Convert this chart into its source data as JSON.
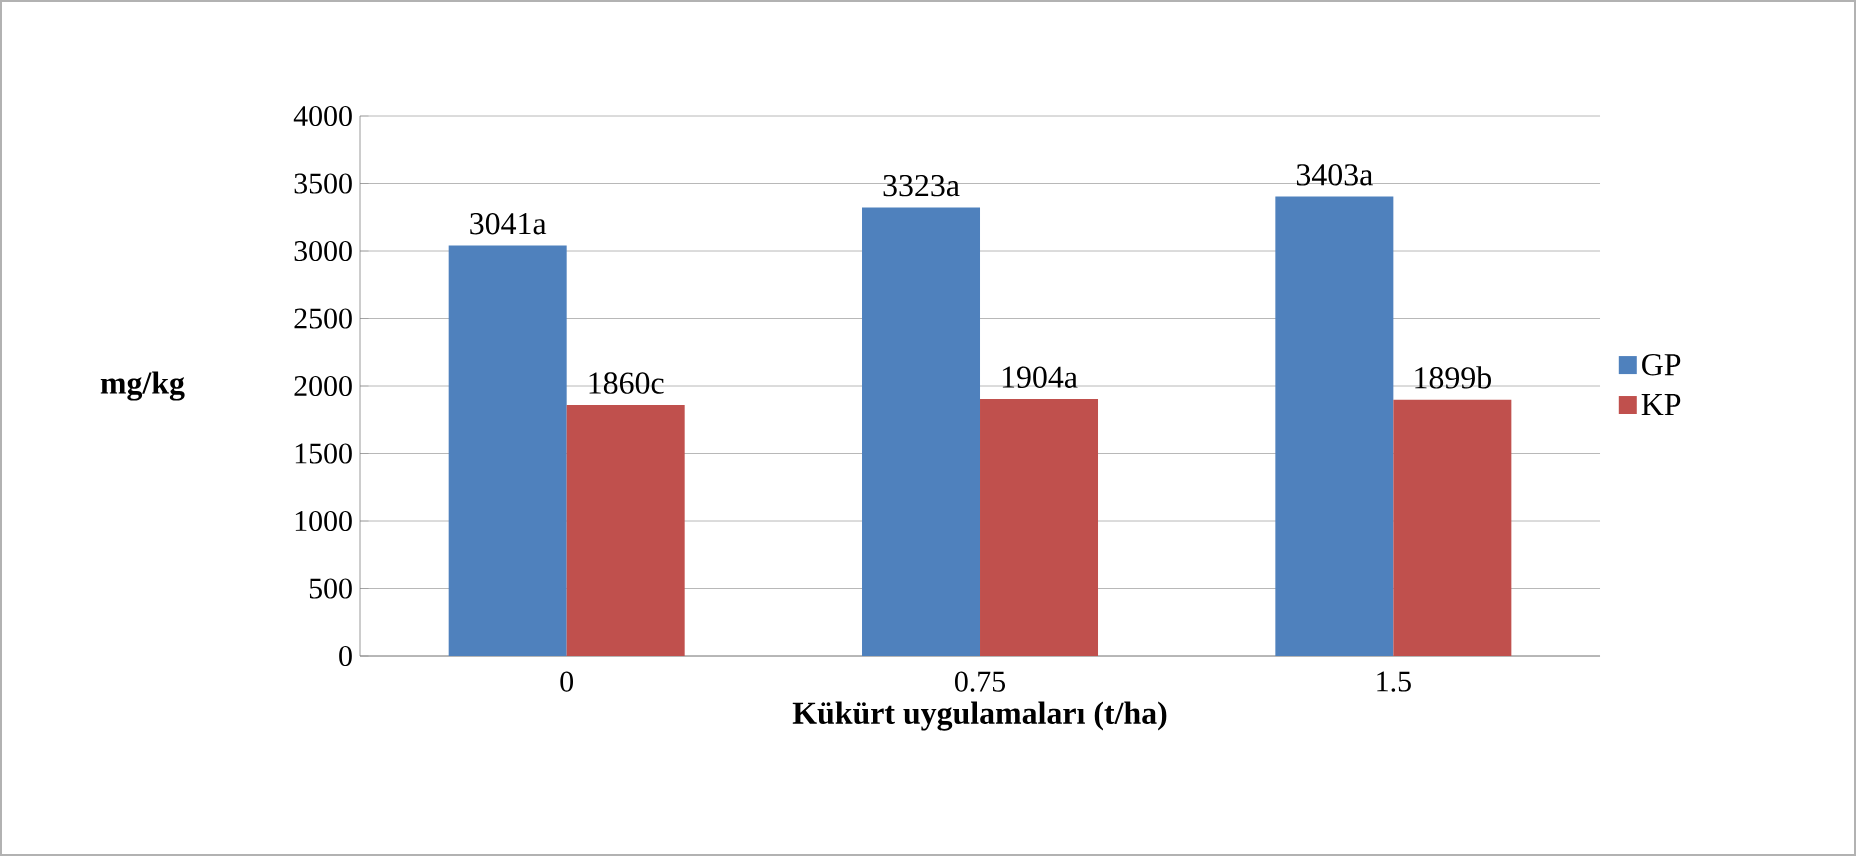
{
  "chart_data": {
    "type": "bar",
    "xlabel": "Kükürt uygulamaları (t/ha)",
    "ylabel": "mg/kg",
    "categories": [
      "0",
      "0.75",
      "1.5"
    ],
    "series": [
      {
        "name": "GP",
        "color": "#4f81bd",
        "values": [
          3041,
          3323,
          3403
        ],
        "value_labels": [
          "3041a",
          "3323a",
          "3403a"
        ]
      },
      {
        "name": "KP",
        "color": "#c0504d",
        "values": [
          1860,
          1904,
          1899
        ],
        "value_labels": [
          "1860c",
          "1904a",
          "1899b"
        ]
      }
    ],
    "ylim": [
      0,
      4000
    ],
    "yticks": [
      0,
      500,
      1000,
      1500,
      2000,
      2500,
      3000,
      3500,
      4000
    ],
    "grid": "y",
    "legend": "right"
  }
}
